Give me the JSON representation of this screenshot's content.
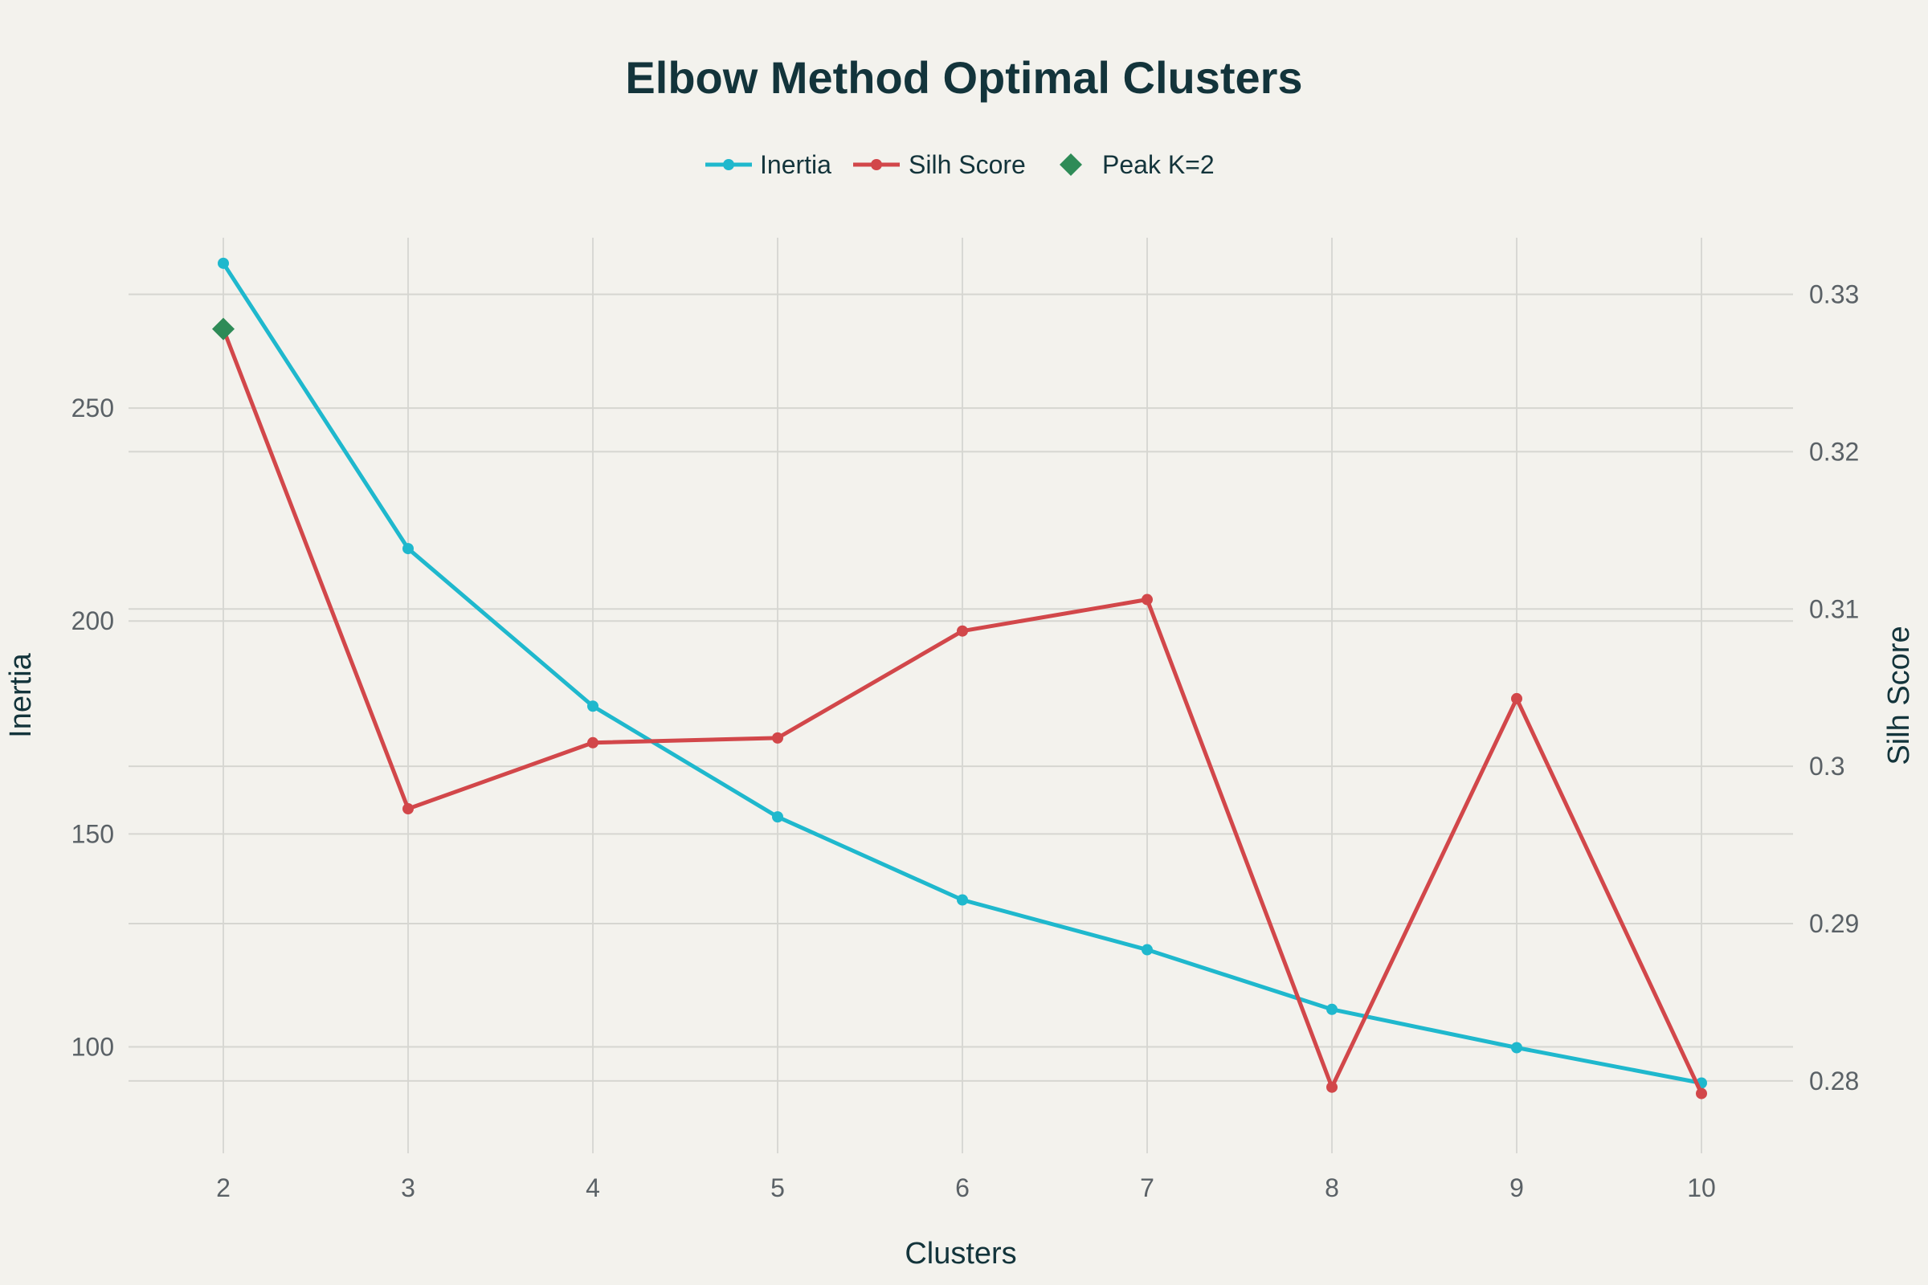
{
  "chart_data": {
    "type": "line",
    "title": "Elbow Method Optimal Clusters",
    "xlabel": "Clusters",
    "ylabel_left": "Inertia",
    "ylabel_right": "Silh Score",
    "x": [
      2,
      3,
      4,
      5,
      6,
      7,
      8,
      9,
      10
    ],
    "x_ticks": [
      "2",
      "3",
      "4",
      "5",
      "6",
      "7",
      "8",
      "9",
      "10"
    ],
    "y_left_ticks": [
      "100",
      "150",
      "200",
      "250"
    ],
    "y_right_ticks": [
      "0.28",
      "0.29",
      "0.3",
      "0.31",
      "0.32",
      "0.33"
    ],
    "y_left_range": [
      75,
      290
    ],
    "y_right_range": [
      0.2754,
      0.3336
    ],
    "series": [
      {
        "name": "Inertia",
        "axis": "left",
        "color": "#1fb8cd",
        "values": [
          284,
          217,
          180,
          154,
          134.5,
          122.8,
          108.8,
          99.8,
          91.5
        ]
      },
      {
        "name": "Silh Score",
        "axis": "right",
        "color": "#d2474a",
        "values": [
          0.3278,
          0.2973,
          0.3015,
          0.3018,
          0.3086,
          0.3106,
          0.2796,
          0.3043,
          0.2792
        ]
      }
    ],
    "peak": {
      "name": "Peak K=2",
      "x": 2,
      "value": 0.3278,
      "axis": "right",
      "color": "#2e8b57",
      "marker": "diamond"
    },
    "legend_position": "top-center",
    "grid": true
  }
}
